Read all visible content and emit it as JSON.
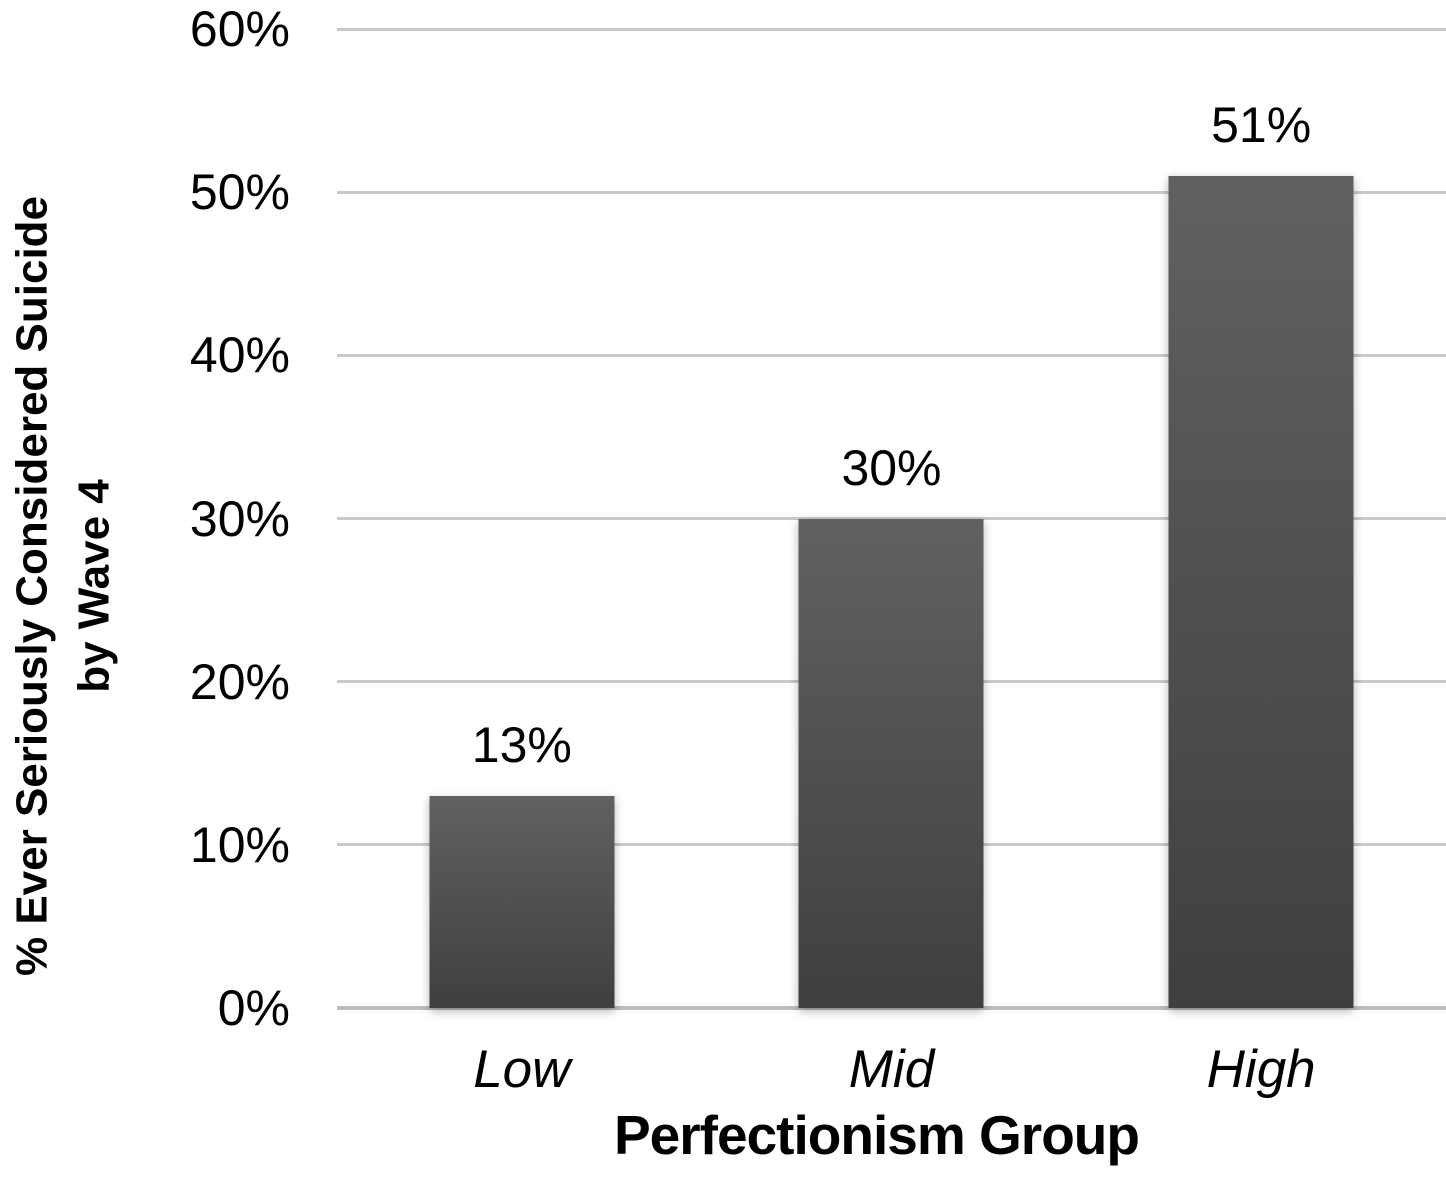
{
  "chart_data": {
    "type": "bar",
    "title": "",
    "categories": [
      "Low",
      "Mid",
      "High"
    ],
    "values": [
      13,
      30,
      51
    ],
    "bar_labels": [
      "13%",
      "30%",
      "51%"
    ],
    "xlabel": "Perfectionism Group",
    "ylabel_line1": "% Ever Seriously Considered Suicide",
    "ylabel_line2": "by Wave 4",
    "ylim": [
      0,
      60
    ],
    "yticks": [
      {
        "value": 60,
        "label": "60%"
      },
      {
        "value": 50,
        "label": "50%"
      },
      {
        "value": 40,
        "label": "40%"
      },
      {
        "value": 30,
        "label": "30%"
      },
      {
        "value": 20,
        "label": "20%"
      },
      {
        "value": 10,
        "label": "10%"
      },
      {
        "value": 0,
        "label": "0%"
      }
    ],
    "grid": "horizontal",
    "legend": "none",
    "colors": {
      "bar_gradient_top": "#616161",
      "bar_gradient_bottom": "#3f3f3f",
      "gridline": "#c9c9c9",
      "axis_line": "#bcbcbc",
      "text": "#000000",
      "background": "#ffffff"
    }
  }
}
